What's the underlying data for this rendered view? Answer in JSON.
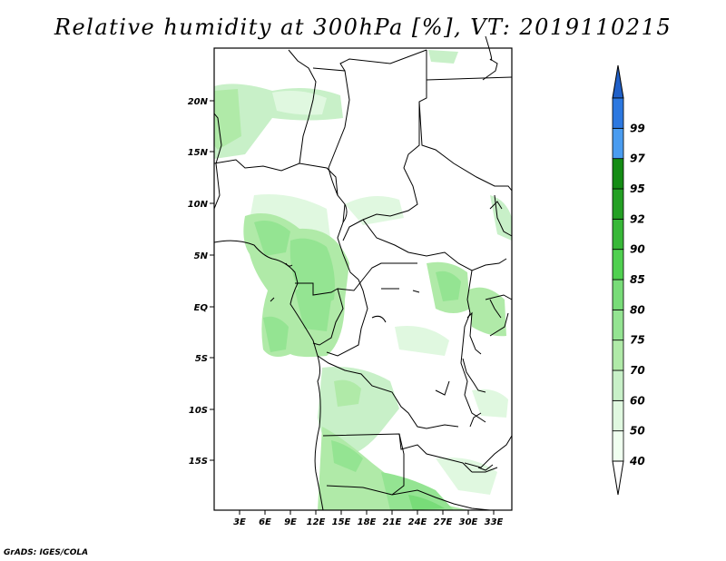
{
  "title": "Relative humidity at 300hPa [%], VT: 2019110215",
  "map": {
    "lat_labels": [
      "20N",
      "15N",
      "10N",
      "5N",
      "EQ",
      "5S",
      "10S",
      "15S"
    ],
    "lon_labels": [
      "3E",
      "6E",
      "9E",
      "12E",
      "15E",
      "18E",
      "21E",
      "24E",
      "27E",
      "30E",
      "33E"
    ]
  },
  "colorbar": {
    "bins": [
      {
        "label": "40",
        "color": "#f0fff0"
      },
      {
        "label": "50",
        "color": "#e0f8e0"
      },
      {
        "label": "60",
        "color": "#c8f0c8"
      },
      {
        "label": "70",
        "color": "#b0eaa8"
      },
      {
        "label": "75",
        "color": "#94e492"
      },
      {
        "label": "80",
        "color": "#78dc78"
      },
      {
        "label": "85",
        "color": "#50d050"
      },
      {
        "label": "90",
        "color": "#38b838"
      },
      {
        "label": "92",
        "color": "#24a024"
      },
      {
        "label": "95",
        "color": "#148c14"
      },
      {
        "label": "97",
        "color": "#4a9cf0"
      },
      {
        "label": "99",
        "color": "#2c78e0"
      }
    ],
    "top_color": "#2060c8",
    "bottom_color": "#ffffff"
  },
  "credit": "GrADS: IGES/COLA"
}
